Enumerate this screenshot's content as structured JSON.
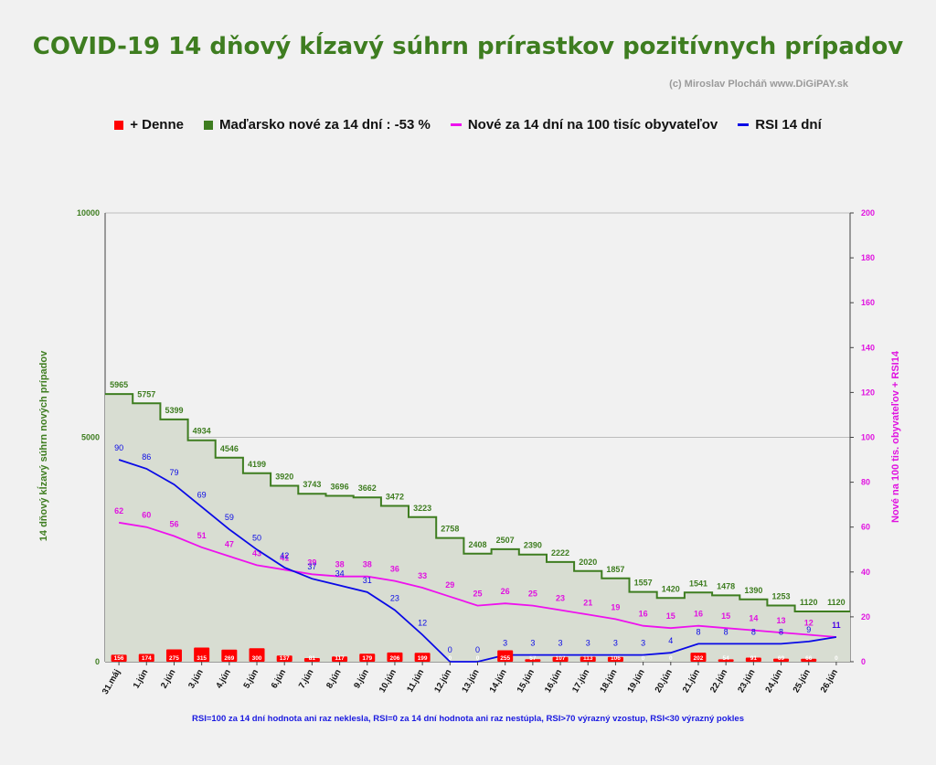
{
  "chart_data": {
    "type": "line",
    "title": "COVID-19 14 dňový kĺzavý súhrn prírastkov pozitívnych prípadov",
    "credit": "(c) Miroslav Plocháň  www.DiGiPAY.sk",
    "footnote": "RSI=100 za 14 dní hodnota ani raz neklesla, RSI=0 za 14 dní hodnota ani raz nestúpla, RSI>70 výrazný  vzostup, RSI<30 výrazný pokles",
    "ylabel_left": "14 dňový kĺzavý  súhrn nových prípadov",
    "ylabel_right": "Nové na 100 tis. obyvateľov + RSI14",
    "ylim_left": [
      0,
      10000
    ],
    "ylim_right": [
      0,
      200
    ],
    "yticks_left": [
      "0",
      "5000",
      "10000"
    ],
    "yticks_right": [
      "0",
      "20",
      "40",
      "60",
      "80",
      "100",
      "120",
      "140",
      "160",
      "180",
      "200"
    ],
    "grid": "horizontal",
    "legend_position": "top",
    "categories": [
      "31.máj",
      "1.jún",
      "2.jún",
      "3.jún",
      "4.jún",
      "5.jún",
      "6.jún",
      "7.jún",
      "8.jún",
      "9.jún",
      "10.jún",
      "11.jún",
      "12.jún",
      "13.jún",
      "14.jún",
      "15.jún",
      "16.jún",
      "17.jún",
      "18.jún",
      "19.jún",
      "20.jún",
      "21.jún",
      "22.jún",
      "23.jún",
      "24.jún",
      "25.jún",
      "26.jún"
    ],
    "series": [
      {
        "name": "+ Denne",
        "axis": "left",
        "color": "#ff0000",
        "values": [
          156,
          174,
          275,
          315,
          269,
          300,
          137,
          81,
          117,
          179,
          206,
          199,
          0,
          0,
          255,
          57,
          107,
          113,
          106,
          0,
          0,
          202,
          54,
          91,
          69,
          66,
          0
        ]
      },
      {
        "name": "Maďarsko nové za 14 dní : -53 %",
        "axis": "left",
        "color": "#3e7d20",
        "values": [
          5965,
          5757,
          5399,
          4934,
          4546,
          4199,
          3920,
          3743,
          3696,
          3662,
          3472,
          3223,
          2758,
          2408,
          2507,
          2390,
          2222,
          2020,
          1857,
          1557,
          1420,
          1541,
          1478,
          1390,
          1253,
          1120,
          1120
        ]
      },
      {
        "name": "Nové za 14 dní na 100 tisíc obyvateľov",
        "axis": "right",
        "color": "#ee11ee",
        "values": [
          62,
          60,
          56,
          51,
          47,
          43,
          41,
          39,
          38,
          38,
          36,
          33,
          29,
          25,
          26,
          25,
          23,
          21,
          19,
          16,
          15,
          16,
          15,
          14,
          13,
          12,
          11
        ]
      },
      {
        "name": "RSI 14 dní",
        "axis": "right",
        "color": "#0a0ae6",
        "values": [
          90,
          86,
          79,
          69,
          59,
          50,
          42,
          37,
          34,
          31,
          23,
          12,
          0,
          0,
          3,
          3,
          3,
          3,
          3,
          3,
          4,
          8,
          8,
          8,
          8,
          9,
          11
        ]
      }
    ]
  }
}
